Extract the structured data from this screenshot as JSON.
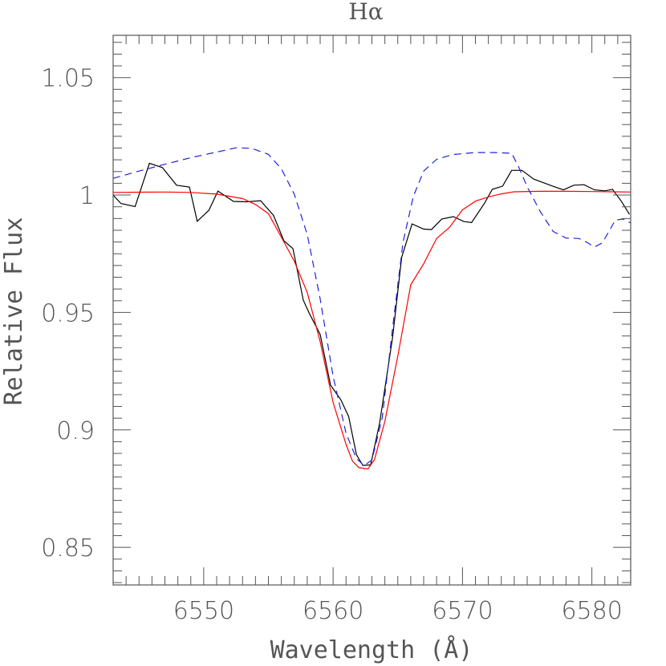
{
  "chart_data": {
    "type": "line",
    "title": "Hα",
    "xlabel": "Wavelength (Å)",
    "ylabel": "Relative Flux",
    "xlim": [
      6543,
      6583
    ],
    "ylim": [
      0.834,
      1.068
    ],
    "x_ticks": [
      {
        "value": 6550,
        "label": "6550"
      },
      {
        "value": 6560,
        "label": "6560"
      },
      {
        "value": 6570,
        "label": "6570"
      },
      {
        "value": 6580,
        "label": "6580"
      }
    ],
    "y_ticks": [
      {
        "value": 0.85,
        "label": "0.85"
      },
      {
        "value": 0.9,
        "label": "0.9"
      },
      {
        "value": 0.95,
        "label": "0.95"
      },
      {
        "value": 1.0,
        "label": "1"
      },
      {
        "value": 1.05,
        "label": "1.05"
      }
    ],
    "x_minor_step": 1,
    "y_minor_step": 0.005,
    "grid": false,
    "series": [
      {
        "color": "#000000",
        "dash": "none",
        "points": [
          [
            6543.0,
            1.0
          ],
          [
            6543.6,
            0.9964
          ],
          [
            6544.7,
            0.9951
          ],
          [
            6545.8,
            1.0135
          ],
          [
            6546.8,
            1.0117
          ],
          [
            6547.9,
            1.0042
          ],
          [
            6548.9,
            1.0034
          ],
          [
            6549.5,
            0.9888
          ],
          [
            6550.4,
            0.9935
          ],
          [
            6551.1,
            1.0017
          ],
          [
            6552.3,
            0.9973
          ],
          [
            6553.3,
            0.9971
          ],
          [
            6554.4,
            0.9976
          ],
          [
            6555.4,
            0.9913
          ],
          [
            6556.2,
            0.9805
          ],
          [
            6556.9,
            0.9772
          ],
          [
            6557.7,
            0.9552
          ],
          [
            6558.2,
            0.9492
          ],
          [
            6559.0,
            0.9407
          ],
          [
            6559.8,
            0.9191
          ],
          [
            6560.6,
            0.9128
          ],
          [
            6561.2,
            0.9057
          ],
          [
            6561.8,
            0.8895
          ],
          [
            6562.3,
            0.8849
          ],
          [
            6562.9,
            0.8851
          ],
          [
            6563.6,
            0.9031
          ],
          [
            6564.6,
            0.9395
          ],
          [
            6565.3,
            0.9735
          ],
          [
            6566.1,
            0.9877
          ],
          [
            6567.0,
            0.9855
          ],
          [
            6567.6,
            0.9853
          ],
          [
            6568.4,
            0.9898
          ],
          [
            6569.3,
            0.9908
          ],
          [
            6570.1,
            0.9887
          ],
          [
            6570.7,
            0.9883
          ],
          [
            6571.7,
            0.9965
          ],
          [
            6572.3,
            1.0024
          ],
          [
            6573.1,
            1.0038
          ],
          [
            6573.8,
            1.0105
          ],
          [
            6574.6,
            1.0105
          ],
          [
            6575.5,
            1.0068
          ],
          [
            6576.2,
            1.0054
          ],
          [
            6577.0,
            1.0037
          ],
          [
            6577.8,
            1.0022
          ],
          [
            6578.6,
            1.0042
          ],
          [
            6579.4,
            1.0044
          ],
          [
            6580.2,
            1.0022
          ],
          [
            6581.0,
            1.0018
          ],
          [
            6581.6,
            1.0024
          ],
          [
            6582.3,
            0.9972
          ],
          [
            6582.9,
            0.9918
          ]
        ]
      },
      {
        "color": "#ff0000",
        "dash": "none",
        "points": [
          [
            6543.0,
            1.0011
          ],
          [
            6545.0,
            1.0012
          ],
          [
            6547.0,
            1.0013
          ],
          [
            6549.0,
            1.0011
          ],
          [
            6551.0,
            1.0004
          ],
          [
            6553.0,
            0.9985
          ],
          [
            6554.0,
            0.996
          ],
          [
            6555.0,
            0.9921
          ],
          [
            6556.0,
            0.9821
          ],
          [
            6557.0,
            0.9718
          ],
          [
            6558.0,
            0.9585
          ],
          [
            6559.0,
            0.9376
          ],
          [
            6560.0,
            0.9117
          ],
          [
            6561.0,
            0.8938
          ],
          [
            6561.5,
            0.8867
          ],
          [
            6562.0,
            0.8839
          ],
          [
            6562.7,
            0.8834
          ],
          [
            6563.2,
            0.8874
          ],
          [
            6564.0,
            0.9036
          ],
          [
            6565.0,
            0.9315
          ],
          [
            6566.0,
            0.9618
          ],
          [
            6567.0,
            0.9707
          ],
          [
            6568.0,
            0.9815
          ],
          [
            6569.0,
            0.9863
          ],
          [
            6570.0,
            0.9937
          ],
          [
            6571.0,
            0.9974
          ],
          [
            6572.0,
            0.9992
          ],
          [
            6573.0,
            1.0005
          ],
          [
            6574.0,
            1.0014
          ],
          [
            6576.0,
            1.0016
          ],
          [
            6578.0,
            1.0016
          ],
          [
            6580.0,
            1.0015
          ],
          [
            6583.0,
            1.0013
          ]
        ]
      },
      {
        "color": "#2222dd",
        "dash": "9,6",
        "points": [
          [
            6543.0,
            1.0071
          ],
          [
            6545.0,
            1.0102
          ],
          [
            6547.0,
            1.0131
          ],
          [
            6549.0,
            1.0159
          ],
          [
            6551.0,
            1.0183
          ],
          [
            6552.5,
            1.0201
          ],
          [
            6553.7,
            1.0199
          ],
          [
            6555.0,
            1.0173
          ],
          [
            6556.0,
            1.0112
          ],
          [
            6557.0,
            1.0003
          ],
          [
            6558.0,
            0.9832
          ],
          [
            6559.0,
            0.9558
          ],
          [
            6560.0,
            0.9229
          ],
          [
            6561.0,
            0.8985
          ],
          [
            6561.8,
            0.8878
          ],
          [
            6562.4,
            0.8848
          ],
          [
            6563.0,
            0.8872
          ],
          [
            6563.8,
            0.9052
          ],
          [
            6564.6,
            0.9435
          ],
          [
            6565.4,
            0.9798
          ],
          [
            6566.2,
            0.9994
          ],
          [
            6567.0,
            1.0102
          ],
          [
            6568.0,
            1.0152
          ],
          [
            6569.2,
            1.0172
          ],
          [
            6571.0,
            1.0181
          ],
          [
            6572.5,
            1.0181
          ],
          [
            6573.8,
            1.0178
          ],
          [
            6574.4,
            1.0113
          ],
          [
            6575.0,
            1.0035
          ],
          [
            6576.0,
            0.9931
          ],
          [
            6577.0,
            0.9845
          ],
          [
            6578.0,
            0.9817
          ],
          [
            6579.0,
            0.9815
          ],
          [
            6579.6,
            0.9799
          ],
          [
            6580.2,
            0.9779
          ],
          [
            6580.8,
            0.9796
          ],
          [
            6581.3,
            0.9843
          ],
          [
            6581.8,
            0.9893
          ],
          [
            6582.4,
            0.9898
          ],
          [
            6583.0,
            0.9881
          ]
        ]
      }
    ]
  }
}
